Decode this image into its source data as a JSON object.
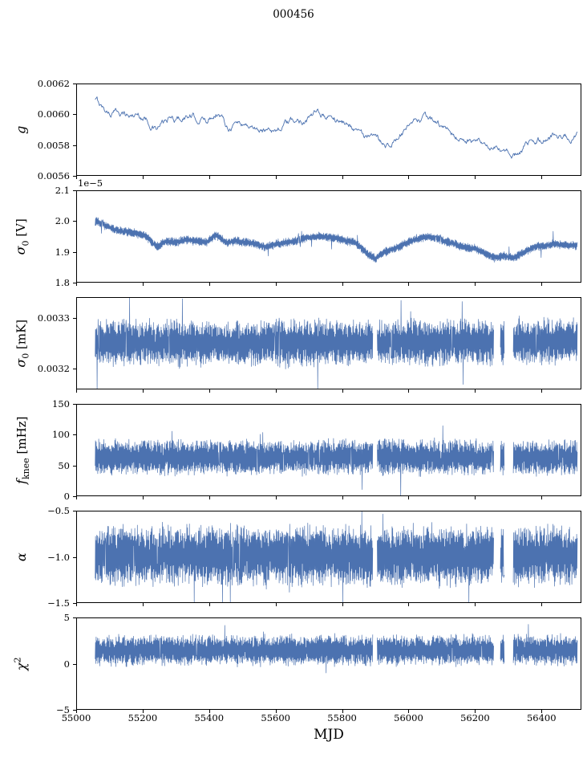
{
  "title": "000456",
  "colors": {
    "line": "#4c72b0",
    "axis": "#000000",
    "background": "#ffffff"
  },
  "chart_data": {
    "type": "line",
    "title": "000456",
    "xlabel": "MJD",
    "legend": "none",
    "grid": false,
    "x_range": [
      55000,
      56520
    ],
    "x_data_range": [
      55055,
      56510
    ],
    "x_ticks": [
      55000,
      55200,
      55400,
      55600,
      55800,
      56000,
      56200,
      56400
    ],
    "x_tick_labels": [
      "55000",
      "55200",
      "55400",
      "55600",
      "55800",
      "56000",
      "56200",
      "56400"
    ],
    "gaps": [
      [
        55893,
        55906
      ],
      [
        56258,
        56278
      ],
      [
        56290,
        56316
      ]
    ],
    "panels": [
      {
        "name": "g",
        "ylabel": {
          "main": "g",
          "sub": "",
          "sup": "",
          "unit": ""
        },
        "ylim": [
          0.0056,
          0.0062
        ],
        "yticks": [
          0.0056,
          0.0058,
          0.006,
          0.0062
        ],
        "ytick_labels": [
          "0.0056",
          "0.0058",
          "0.0060",
          "0.0062"
        ],
        "offset_text": "",
        "smooth": true,
        "has_gaps": false,
        "noise_amp": 8e-06,
        "spike_prob": 0,
        "spike_amp": 0,
        "points": 800,
        "trend": [
          [
            55060,
            0.00609
          ],
          [
            55080,
            0.00604
          ],
          [
            55100,
            0.00601
          ],
          [
            55130,
            0.00602
          ],
          [
            55160,
            0.00599
          ],
          [
            55185,
            0.006
          ],
          [
            55210,
            0.00597
          ],
          [
            55240,
            0.0059
          ],
          [
            55260,
            0.00594
          ],
          [
            55280,
            0.00597
          ],
          [
            55300,
            0.00596
          ],
          [
            55330,
            0.00599
          ],
          [
            55360,
            0.00597
          ],
          [
            55390,
            0.00596
          ],
          [
            55420,
            0.00602
          ],
          [
            55440,
            0.00597
          ],
          [
            55460,
            0.00592
          ],
          [
            55480,
            0.00595
          ],
          [
            55500,
            0.00594
          ],
          [
            55530,
            0.00592
          ],
          [
            55560,
            0.00588
          ],
          [
            55580,
            0.00592
          ],
          [
            55600,
            0.0059
          ],
          [
            55630,
            0.00594
          ],
          [
            55660,
            0.00595
          ],
          [
            55690,
            0.00597
          ],
          [
            55720,
            0.006
          ],
          [
            55750,
            0.00599
          ],
          [
            55780,
            0.00597
          ],
          [
            55810,
            0.00594
          ],
          [
            55840,
            0.00592
          ],
          [
            55870,
            0.00585
          ],
          [
            55900,
            0.00583
          ],
          [
            55930,
            0.00581
          ],
          [
            55960,
            0.00583
          ],
          [
            55990,
            0.00588
          ],
          [
            56020,
            0.00594
          ],
          [
            56050,
            0.00597
          ],
          [
            56080,
            0.00595
          ],
          [
            56110,
            0.0059
          ],
          [
            56140,
            0.00586
          ],
          [
            56170,
            0.00583
          ],
          [
            56200,
            0.00582
          ],
          [
            56230,
            0.00578
          ],
          [
            56260,
            0.00577
          ],
          [
            56290,
            0.00574
          ],
          [
            56320,
            0.00573
          ],
          [
            56350,
            0.00579
          ],
          [
            56380,
            0.00582
          ],
          [
            56410,
            0.00584
          ],
          [
            56440,
            0.00587
          ],
          [
            56470,
            0.00585
          ],
          [
            56510,
            0.00586
          ]
        ]
      },
      {
        "name": "sigma0_V",
        "ylabel": {
          "main": "σ",
          "sub": "0",
          "sup": "",
          "unit": " [V]"
        },
        "ylim": [
          1.8,
          2.1
        ],
        "yticks": [
          1.8,
          1.9,
          2.0,
          2.1
        ],
        "ytick_labels": [
          "1.8",
          "1.9",
          "2.0",
          "2.1"
        ],
        "offset_text": "1e−5",
        "smooth": false,
        "has_gaps": false,
        "noise_amp": 0.013,
        "spike_prob": 0.012,
        "spike_amp": 0.035,
        "points": 1400,
        "trend": [
          [
            55060,
            2.0
          ],
          [
            55090,
            1.985
          ],
          [
            55120,
            1.97
          ],
          [
            55150,
            1.965
          ],
          [
            55180,
            1.96
          ],
          [
            55210,
            1.95
          ],
          [
            55240,
            1.915
          ],
          [
            55270,
            1.935
          ],
          [
            55300,
            1.93
          ],
          [
            55330,
            1.94
          ],
          [
            55360,
            1.935
          ],
          [
            55390,
            1.93
          ],
          [
            55420,
            1.955
          ],
          [
            55450,
            1.93
          ],
          [
            55480,
            1.935
          ],
          [
            55510,
            1.93
          ],
          [
            55540,
            1.925
          ],
          [
            55570,
            1.915
          ],
          [
            55600,
            1.925
          ],
          [
            55630,
            1.93
          ],
          [
            55660,
            1.935
          ],
          [
            55690,
            1.945
          ],
          [
            55720,
            1.95
          ],
          [
            55750,
            1.95
          ],
          [
            55780,
            1.945
          ],
          [
            55810,
            1.935
          ],
          [
            55840,
            1.93
          ],
          [
            55870,
            1.9
          ],
          [
            55900,
            1.875
          ],
          [
            55930,
            1.9
          ],
          [
            55960,
            1.91
          ],
          [
            55990,
            1.925
          ],
          [
            56020,
            1.94
          ],
          [
            56050,
            1.95
          ],
          [
            56080,
            1.945
          ],
          [
            56110,
            1.935
          ],
          [
            56140,
            1.925
          ],
          [
            56170,
            1.915
          ],
          [
            56200,
            1.91
          ],
          [
            56230,
            1.895
          ],
          [
            56260,
            1.88
          ],
          [
            56290,
            1.885
          ],
          [
            56320,
            1.88
          ],
          [
            56350,
            1.9
          ],
          [
            56380,
            1.915
          ],
          [
            56410,
            1.92
          ],
          [
            56440,
            1.925
          ],
          [
            56470,
            1.92
          ],
          [
            56510,
            1.92
          ]
        ]
      },
      {
        "name": "sigma0_mK",
        "ylabel": {
          "main": "σ",
          "sub": "0",
          "sup": "",
          "unit": " [mK]"
        },
        "ylim": [
          0.003158,
          0.003342
        ],
        "yticks": [
          0.0032,
          0.0033
        ],
        "ytick_labels": [
          "0.0032",
          "0.0033"
        ],
        "offset_text": "",
        "smooth": false,
        "has_gaps": true,
        "noise_amp": 4.2e-05,
        "spike_prob": 0.012,
        "spike_amp": 8e-05,
        "points": 1500,
        "trend": [
          [
            55060,
            0.003252
          ],
          [
            55400,
            0.003249
          ],
          [
            55800,
            0.003251
          ],
          [
            56100,
            0.003252
          ],
          [
            56510,
            0.003255
          ]
        ]
      },
      {
        "name": "f_knee",
        "ylabel": {
          "main": "f",
          "sub": "knee",
          "sup": "",
          "unit": " [mHz]"
        },
        "ylim": [
          0,
          150
        ],
        "yticks": [
          0,
          50,
          100,
          150
        ],
        "ytick_labels": [
          "0",
          "50",
          "100",
          "150"
        ],
        "offset_text": "",
        "smooth": false,
        "has_gaps": true,
        "noise_amp": 26,
        "spike_prob": 0.012,
        "spike_amp": 38,
        "points": 1500,
        "trend": [
          [
            55060,
            63
          ],
          [
            56510,
            63
          ]
        ]
      },
      {
        "name": "alpha",
        "ylabel": {
          "main": "α",
          "sub": "",
          "sup": "",
          "unit": ""
        },
        "ylim": [
          -1.5,
          -0.5
        ],
        "yticks": [
          -1.5,
          -1.0,
          -0.5
        ],
        "ytick_labels": [
          "−1.5",
          "−1.0",
          "−0.5"
        ],
        "offset_text": "",
        "smooth": false,
        "has_gaps": true,
        "noise_amp": 0.3,
        "spike_prob": 0.012,
        "spike_amp": 0.4,
        "points": 1500,
        "trend": [
          [
            55060,
            -0.99
          ],
          [
            56510,
            -0.99
          ]
        ]
      },
      {
        "name": "chi2",
        "ylabel": {
          "main": "χ",
          "sub": "",
          "sup": "2",
          "unit": ""
        },
        "ylim": [
          -5,
          5
        ],
        "yticks": [
          -5,
          0,
          5
        ],
        "ytick_labels": [
          "−5",
          "0",
          "5"
        ],
        "offset_text": "",
        "smooth": false,
        "has_gaps": true,
        "noise_amp": 1.5,
        "spike_prob": 0.012,
        "spike_amp": 2.0,
        "points": 1500,
        "trend": [
          [
            55060,
            1.45
          ],
          [
            56510,
            1.5
          ]
        ]
      }
    ]
  }
}
